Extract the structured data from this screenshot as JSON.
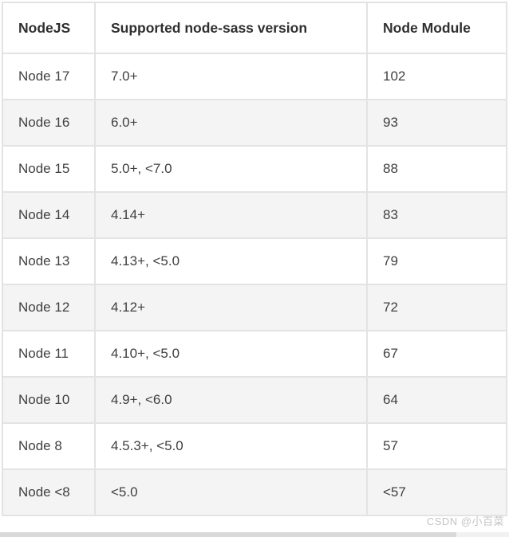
{
  "table": {
    "columns": [
      "NodeJS",
      "Supported node-sass version",
      "Node Module"
    ],
    "rows": [
      [
        "Node 17",
        "7.0+",
        "102"
      ],
      [
        "Node 16",
        "6.0+",
        "93"
      ],
      [
        "Node 15",
        "5.0+, <7.0",
        "88"
      ],
      [
        "Node 14",
        "4.14+",
        "83"
      ],
      [
        "Node 13",
        "4.13+, <5.0",
        "79"
      ],
      [
        "Node 12",
        "4.12+",
        "72"
      ],
      [
        "Node 11",
        "4.10+, <5.0",
        "67"
      ],
      [
        "Node 10",
        "4.9+, <6.0",
        "64"
      ],
      [
        "Node 8",
        "4.5.3+, <5.0",
        "57"
      ],
      [
        "Node <8",
        "<5.0",
        "<57"
      ]
    ]
  },
  "chart_data": {
    "type": "table",
    "columns": [
      "NodeJS",
      "Supported node-sass version",
      "Node Module"
    ],
    "rows": [
      [
        "Node 17",
        "7.0+",
        "102"
      ],
      [
        "Node 16",
        "6.0+",
        "93"
      ],
      [
        "Node 15",
        "5.0+, <7.0",
        "88"
      ],
      [
        "Node 14",
        "4.14+",
        "83"
      ],
      [
        "Node 13",
        "4.13+, <5.0",
        "79"
      ],
      [
        "Node 12",
        "4.12+",
        "72"
      ],
      [
        "Node 11",
        "4.10+, <5.0",
        "67"
      ],
      [
        "Node 10",
        "4.9+, <6.0",
        "64"
      ],
      [
        "Node 8",
        "4.5.3+, <5.0",
        "57"
      ],
      [
        "Node <8",
        "<5.0",
        "<57"
      ]
    ]
  },
  "watermark": {
    "text": "CSDN @小百菜"
  },
  "colors": {
    "border": "#e3e3e3",
    "striped_row_bg": "#f4f4f4",
    "row_bg": "#ffffff",
    "text": "#404040",
    "header_text": "#2f2f2f",
    "watermark_text": "#c4c4c4",
    "scrollbar_track": "#f1f1f1",
    "scrollbar_thumb": "#d9d9d9"
  }
}
